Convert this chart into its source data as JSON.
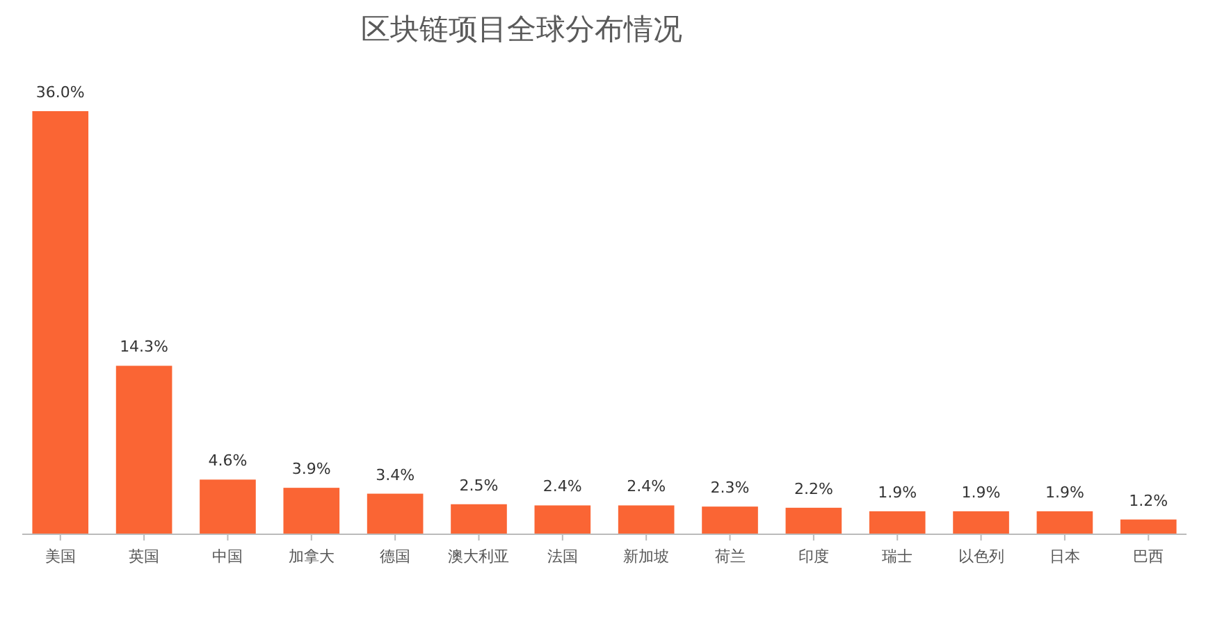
{
  "chart_data": {
    "type": "bar",
    "title": "区块链项目全球分布情况",
    "categories": [
      "美国",
      "英国",
      "中国",
      "加拿大",
      "德国",
      "澳大利亚",
      "法国",
      "新加坡",
      "荷兰",
      "印度",
      "瑞士",
      "以色列",
      "日本",
      "巴西"
    ],
    "values": [
      36.0,
      14.3,
      4.6,
      3.9,
      3.4,
      2.5,
      2.4,
      2.4,
      2.3,
      2.2,
      1.9,
      1.9,
      1.9,
      1.2
    ],
    "value_labels": [
      "36.0%",
      "14.3%",
      "4.6%",
      "3.9%",
      "3.4%",
      "2.5%",
      "2.4%",
      "2.4%",
      "2.3%",
      "2.2%",
      "1.9%",
      "1.9%",
      "1.9%",
      "1.2%"
    ],
    "color": "#fa6534"
  }
}
